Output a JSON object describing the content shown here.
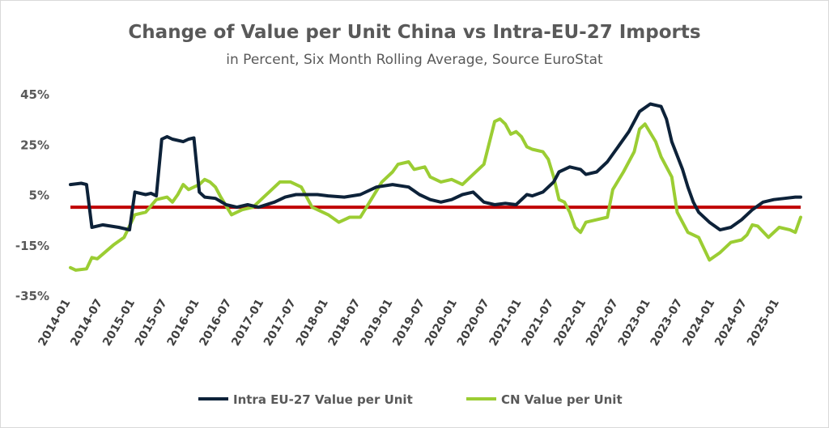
{
  "chart_data": {
    "type": "line",
    "title": "Change of Value per Unit China vs Intra-EU-27 Imports",
    "subtitle": "in Percent, Six Month Rolling Average, Source EuroStat",
    "xlabel": "",
    "ylabel": "",
    "ylim": [
      -35,
      45
    ],
    "yticks": [
      "45%",
      "25%",
      "5%",
      "-15%",
      "-35%"
    ],
    "ytick_values": [
      45,
      25,
      5,
      -15,
      -35
    ],
    "x_start": "2014-01",
    "x_end": "2025-05",
    "xticks": [
      "2014-01",
      "2014-07",
      "2015-01",
      "2015-07",
      "2016-01",
      "2016-07",
      "2017-01",
      "2017-07",
      "2018-01",
      "2018-07",
      "2019-01",
      "2019-07",
      "2020-01",
      "2020-07",
      "2021-01",
      "2021-07",
      "2022-01",
      "2022-07",
      "2023-01",
      "2023-07",
      "2024-01",
      "2024-07",
      "2025-01"
    ],
    "reference_line": {
      "value": 0,
      "color": "#c00000"
    },
    "grid": false,
    "legend_position": "bottom",
    "series": [
      {
        "name": "Intra EU-27 Value per Unit",
        "color": "#0d2239",
        "points": [
          [
            "2014-01",
            9
          ],
          [
            "2014-03",
            9.5
          ],
          [
            "2014-04",
            9
          ],
          [
            "2014-05",
            -8
          ],
          [
            "2014-07",
            -7
          ],
          [
            "2014-10",
            -8
          ],
          [
            "2014-12",
            -9
          ],
          [
            "2015-01",
            6
          ],
          [
            "2015-03",
            5
          ],
          [
            "2015-04",
            5.5
          ],
          [
            "2015-05",
            4.5
          ],
          [
            "2015-06",
            27
          ],
          [
            "2015-07",
            28
          ],
          [
            "2015-08",
            27
          ],
          [
            "2015-10",
            26
          ],
          [
            "2015-11",
            27
          ],
          [
            "2015-12",
            27.5
          ],
          [
            "2016-01",
            6
          ],
          [
            "2016-02",
            4
          ],
          [
            "2016-04",
            3.5
          ],
          [
            "2016-06",
            1
          ],
          [
            "2016-08",
            0
          ],
          [
            "2016-10",
            1
          ],
          [
            "2016-12",
            0
          ],
          [
            "2017-03",
            2
          ],
          [
            "2017-05",
            4
          ],
          [
            "2017-07",
            5
          ],
          [
            "2017-09",
            5
          ],
          [
            "2017-11",
            5
          ],
          [
            "2018-01",
            4.5
          ],
          [
            "2018-04",
            4
          ],
          [
            "2018-07",
            5
          ],
          [
            "2018-10",
            8
          ],
          [
            "2019-01",
            9
          ],
          [
            "2019-04",
            8
          ],
          [
            "2019-06",
            5
          ],
          [
            "2019-08",
            3
          ],
          [
            "2019-10",
            2
          ],
          [
            "2019-12",
            3
          ],
          [
            "2020-02",
            5
          ],
          [
            "2020-04",
            6
          ],
          [
            "2020-06",
            2
          ],
          [
            "2020-08",
            1
          ],
          [
            "2020-10",
            1.5
          ],
          [
            "2020-12",
            1
          ],
          [
            "2021-02",
            5
          ],
          [
            "2021-03",
            4.5
          ],
          [
            "2021-05",
            6
          ],
          [
            "2021-07",
            10
          ],
          [
            "2021-08",
            14
          ],
          [
            "2021-10",
            16
          ],
          [
            "2021-12",
            15
          ],
          [
            "2022-01",
            13
          ],
          [
            "2022-03",
            14
          ],
          [
            "2022-05",
            18
          ],
          [
            "2022-07",
            24
          ],
          [
            "2022-09",
            30
          ],
          [
            "2022-11",
            38
          ],
          [
            "2023-01",
            41
          ],
          [
            "2023-03",
            40
          ],
          [
            "2023-04",
            35
          ],
          [
            "2023-05",
            26
          ],
          [
            "2023-07",
            15
          ],
          [
            "2023-08",
            8
          ],
          [
            "2023-09",
            2
          ],
          [
            "2023-10",
            -2
          ],
          [
            "2023-12",
            -6
          ],
          [
            "2024-02",
            -9
          ],
          [
            "2024-04",
            -8
          ],
          [
            "2024-06",
            -5
          ],
          [
            "2024-08",
            -1
          ],
          [
            "2024-10",
            2
          ],
          [
            "2024-12",
            3
          ],
          [
            "2025-02",
            3.5
          ],
          [
            "2025-04",
            4
          ],
          [
            "2025-05",
            4
          ]
        ]
      },
      {
        "name": "CN Value per Unit",
        "color": "#9bcd33",
        "points": [
          [
            "2014-01",
            -24
          ],
          [
            "2014-02",
            -25
          ],
          [
            "2014-04",
            -24.5
          ],
          [
            "2014-05",
            -20
          ],
          [
            "2014-06",
            -20.5
          ],
          [
            "2014-09",
            -15
          ],
          [
            "2014-11",
            -12
          ],
          [
            "2015-01",
            -3
          ],
          [
            "2015-03",
            -2
          ],
          [
            "2015-05",
            3
          ],
          [
            "2015-07",
            4
          ],
          [
            "2015-08",
            2
          ],
          [
            "2015-09",
            5
          ],
          [
            "2015-10",
            9
          ],
          [
            "2015-11",
            7
          ],
          [
            "2016-01",
            9
          ],
          [
            "2016-02",
            11
          ],
          [
            "2016-03",
            10
          ],
          [
            "2016-04",
            8
          ],
          [
            "2016-05",
            4
          ],
          [
            "2016-07",
            -3
          ],
          [
            "2016-09",
            -1
          ],
          [
            "2016-11",
            0
          ],
          [
            "2017-01",
            4
          ],
          [
            "2017-02",
            6
          ],
          [
            "2017-04",
            10
          ],
          [
            "2017-06",
            10
          ],
          [
            "2017-08",
            8
          ],
          [
            "2017-10",
            0
          ],
          [
            "2018-01",
            -3
          ],
          [
            "2018-03",
            -6
          ],
          [
            "2018-05",
            -4
          ],
          [
            "2018-07",
            -4
          ],
          [
            "2018-09",
            3
          ],
          [
            "2018-11",
            10
          ],
          [
            "2019-01",
            14
          ],
          [
            "2019-02",
            17
          ],
          [
            "2019-04",
            18
          ],
          [
            "2019-05",
            15
          ],
          [
            "2019-07",
            16
          ],
          [
            "2019-08",
            12
          ],
          [
            "2019-10",
            10
          ],
          [
            "2019-12",
            11
          ],
          [
            "2020-02",
            9
          ],
          [
            "2020-04",
            13
          ],
          [
            "2020-06",
            17
          ],
          [
            "2020-08",
            34
          ],
          [
            "2020-09",
            35
          ],
          [
            "2020-10",
            33
          ],
          [
            "2020-11",
            29
          ],
          [
            "2020-12",
            30
          ],
          [
            "2021-01",
            28
          ],
          [
            "2021-02",
            24
          ],
          [
            "2021-03",
            23
          ],
          [
            "2021-05",
            22
          ],
          [
            "2021-06",
            19
          ],
          [
            "2021-07",
            12
          ],
          [
            "2021-08",
            3
          ],
          [
            "2021-09",
            2
          ],
          [
            "2021-10",
            -2
          ],
          [
            "2021-11",
            -8
          ],
          [
            "2021-12",
            -10
          ],
          [
            "2022-01",
            -6
          ],
          [
            "2022-03",
            -5
          ],
          [
            "2022-05",
            -4
          ],
          [
            "2022-06",
            7
          ],
          [
            "2022-08",
            14
          ],
          [
            "2022-10",
            22
          ],
          [
            "2022-11",
            31
          ],
          [
            "2022-12",
            33
          ],
          [
            "2023-02",
            26
          ],
          [
            "2023-03",
            20
          ],
          [
            "2023-05",
            12
          ],
          [
            "2023-06",
            -2
          ],
          [
            "2023-08",
            -10
          ],
          [
            "2023-10",
            -12
          ],
          [
            "2023-12",
            -21
          ],
          [
            "2024-02",
            -18
          ],
          [
            "2024-04",
            -14
          ],
          [
            "2024-06",
            -13
          ],
          [
            "2024-07",
            -11
          ],
          [
            "2024-08",
            -7
          ],
          [
            "2024-09",
            -7.5
          ],
          [
            "2024-11",
            -12
          ],
          [
            "2025-01",
            -8
          ],
          [
            "2025-03",
            -9
          ],
          [
            "2025-04",
            -10
          ],
          [
            "2025-05",
            -4
          ]
        ]
      }
    ]
  }
}
